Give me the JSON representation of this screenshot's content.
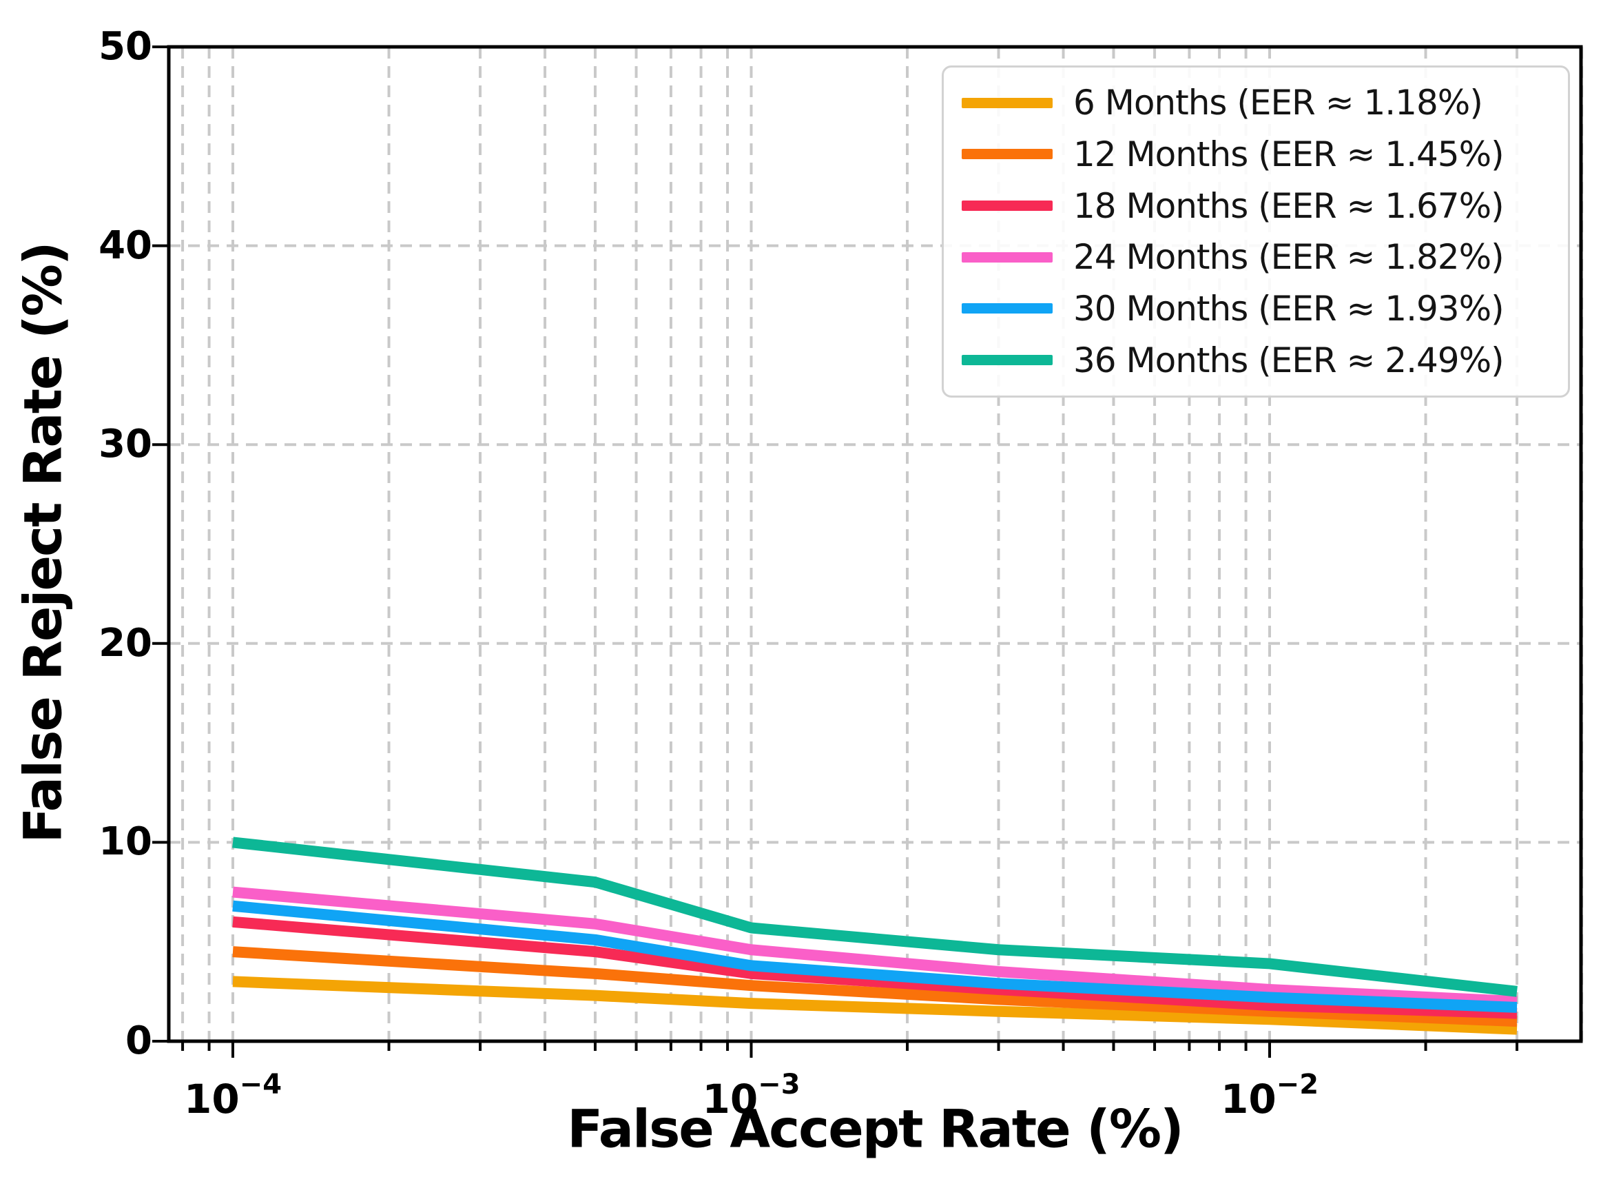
{
  "chart_data": {
    "type": "line",
    "x_scale": "log",
    "title": "",
    "xlabel": "False Accept Rate (%)",
    "ylabel": "False Reject Rate (%)",
    "xlim": [
      7.5e-05,
      0.04
    ],
    "ylim": [
      0,
      50
    ],
    "grid": "dashed, both axes, log minor verticals",
    "legend_position": "upper right",
    "x": [
      0.0001,
      0.0005,
      0.001,
      0.003,
      0.01,
      0.03
    ],
    "series": [
      {
        "name": "6 Months",
        "label": "6 Months (EER ≈ 1.18%)",
        "eer_percent": 1.18,
        "color": "#F4A405",
        "values": [
          3.0,
          2.3,
          1.9,
          1.5,
          1.1,
          0.6
        ]
      },
      {
        "name": "12 Months",
        "label": "12 Months (EER ≈ 1.45%)",
        "eer_percent": 1.45,
        "color": "#FA720A",
        "values": [
          4.5,
          3.4,
          2.8,
          2.1,
          1.5,
          1.0
        ]
      },
      {
        "name": "18 Months",
        "label": "18 Months (EER ≈ 1.67%)",
        "eer_percent": 1.67,
        "color": "#F72A55",
        "values": [
          6.0,
          4.5,
          3.4,
          2.6,
          1.8,
          1.4
        ]
      },
      {
        "name": "24 Months",
        "label": "24 Months (EER ≈ 1.82%)",
        "eer_percent": 1.82,
        "color": "#FA5FC8",
        "values": [
          7.5,
          5.9,
          4.6,
          3.5,
          2.6,
          2.0
        ]
      },
      {
        "name": "30 Months",
        "label": "30 Months (EER ≈ 1.93%)",
        "eer_percent": 1.93,
        "color": "#10A4F5",
        "values": [
          6.8,
          5.1,
          3.8,
          2.9,
          2.2,
          1.7
        ]
      },
      {
        "name": "36 Months",
        "label": "36 Months (EER ≈ 2.49%)",
        "eer_percent": 2.49,
        "color": "#0DB796",
        "values": [
          10.0,
          8.0,
          5.7,
          4.6,
          3.9,
          2.5
        ]
      }
    ],
    "y_ticks": [
      0,
      10,
      20,
      30,
      40,
      50
    ],
    "x_tick_base": "10",
    "x_major_ticks": [
      {
        "value": 0.0001,
        "exponent": "−4"
      },
      {
        "value": 0.001,
        "exponent": "−3"
      },
      {
        "value": 0.01,
        "exponent": "−2"
      }
    ],
    "colors": {
      "background": "#ffffff",
      "spine": "#000000",
      "grid": "#c9c9c9",
      "tick": "#000000",
      "text": "#000000",
      "legend_border": "#d2d2d2"
    }
  }
}
